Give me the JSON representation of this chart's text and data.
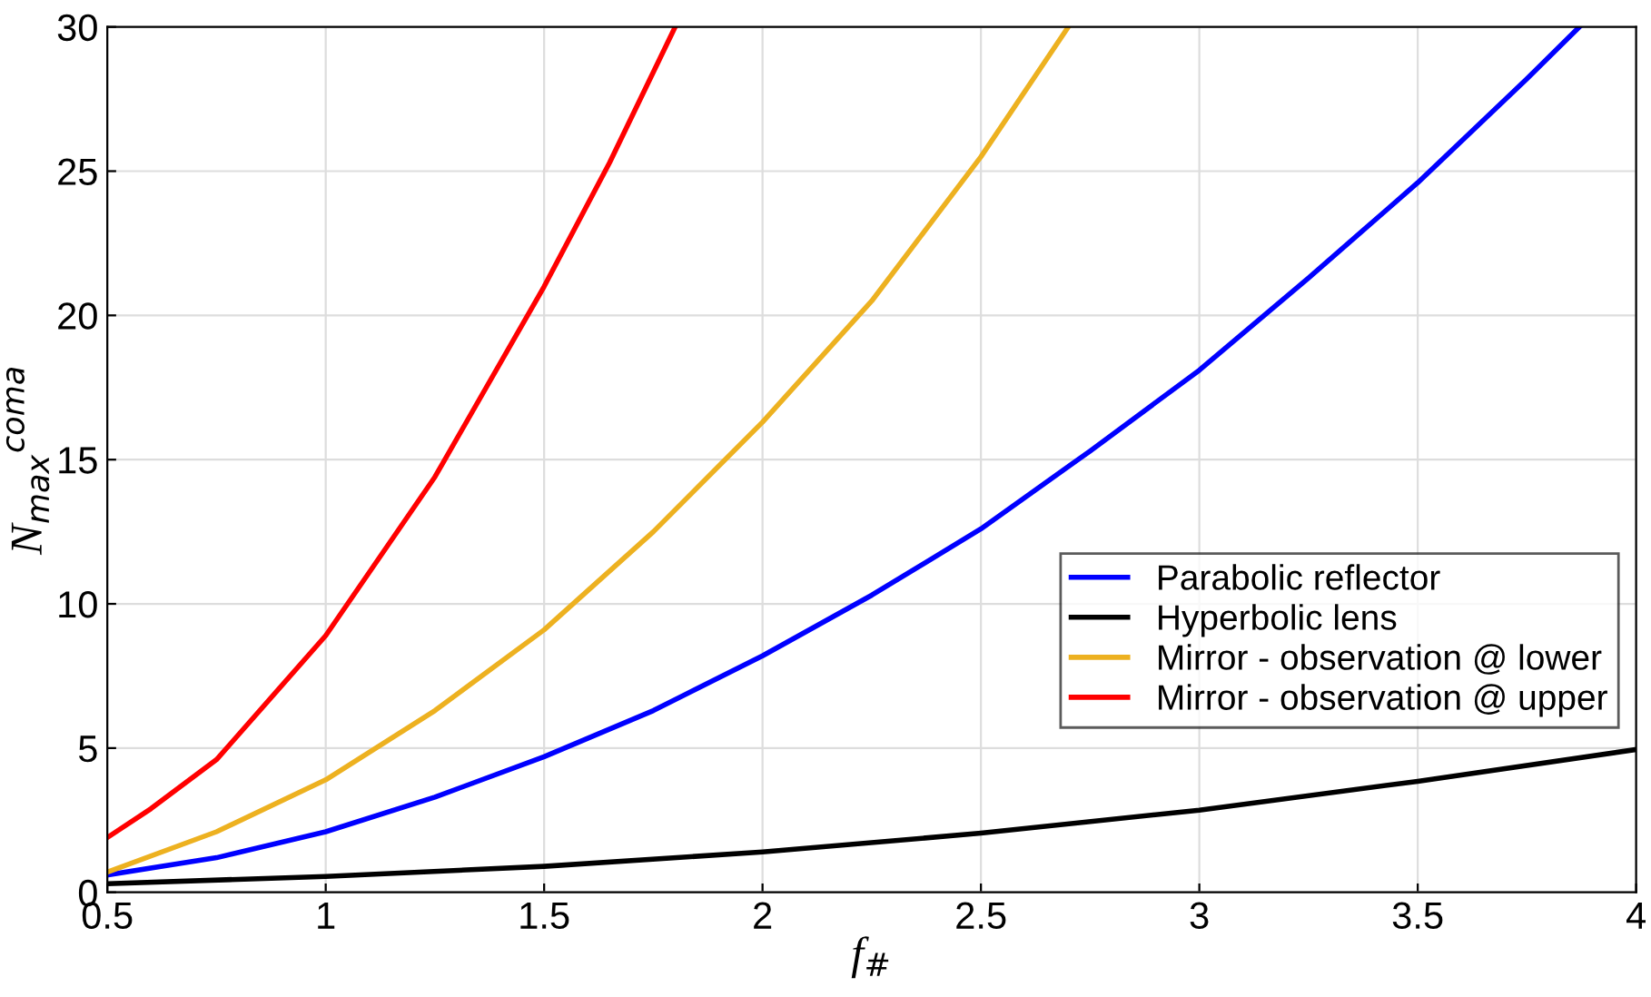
{
  "chart_data": {
    "type": "line",
    "xlabel": "f$_{#}$",
    "ylabel": "N$_{max}$$^{coma}$",
    "xlim": [
      0.5,
      4
    ],
    "ylim": [
      0,
      30
    ],
    "xticks": [
      0.5,
      1,
      1.5,
      2,
      2.5,
      3,
      3.5,
      4
    ],
    "yticks": [
      0,
      5,
      10,
      15,
      20,
      25,
      30
    ],
    "grid": true,
    "legend": "lower right",
    "line_style": "solid",
    "marker": "none",
    "series": [
      {
        "name": "Parabolic reflector",
        "color": "#0000ff",
        "x": [
          0.5,
          0.75,
          1,
          1.25,
          1.5,
          1.75,
          2,
          2.25,
          2.5,
          2.75,
          3,
          3.25,
          3.5,
          3.75,
          3.87
        ],
        "values": [
          0.6,
          1.2,
          2.1,
          3.3,
          4.7,
          6.3,
          8.2,
          10.3,
          12.6,
          15.3,
          18.1,
          21.3,
          24.6,
          28.2,
          30
        ]
      },
      {
        "name": "Hyperbolic lens",
        "color": "#000000",
        "x": [
          0.5,
          1,
          1.5,
          2,
          2.5,
          3,
          3.5,
          4
        ],
        "values": [
          0.3,
          0.55,
          0.9,
          1.4,
          2.05,
          2.85,
          3.85,
          4.95
        ]
      },
      {
        "name": "Mirror - observation @ lower",
        "color": "#edb120",
        "x": [
          0.5,
          0.75,
          1,
          1.25,
          1.5,
          1.75,
          2,
          2.25,
          2.5,
          2.7
        ],
        "values": [
          0.7,
          2.1,
          3.9,
          6.3,
          9.1,
          12.5,
          16.3,
          20.5,
          25.5,
          30
        ]
      },
      {
        "name": "Mirror - observation @ upper",
        "color": "#ff0000",
        "x": [
          0.5,
          0.6,
          0.75,
          1,
          1.25,
          1.5,
          1.65,
          1.8
        ],
        "values": [
          1.9,
          2.9,
          4.6,
          8.9,
          14.4,
          21,
          25.3,
          30
        ]
      }
    ]
  }
}
